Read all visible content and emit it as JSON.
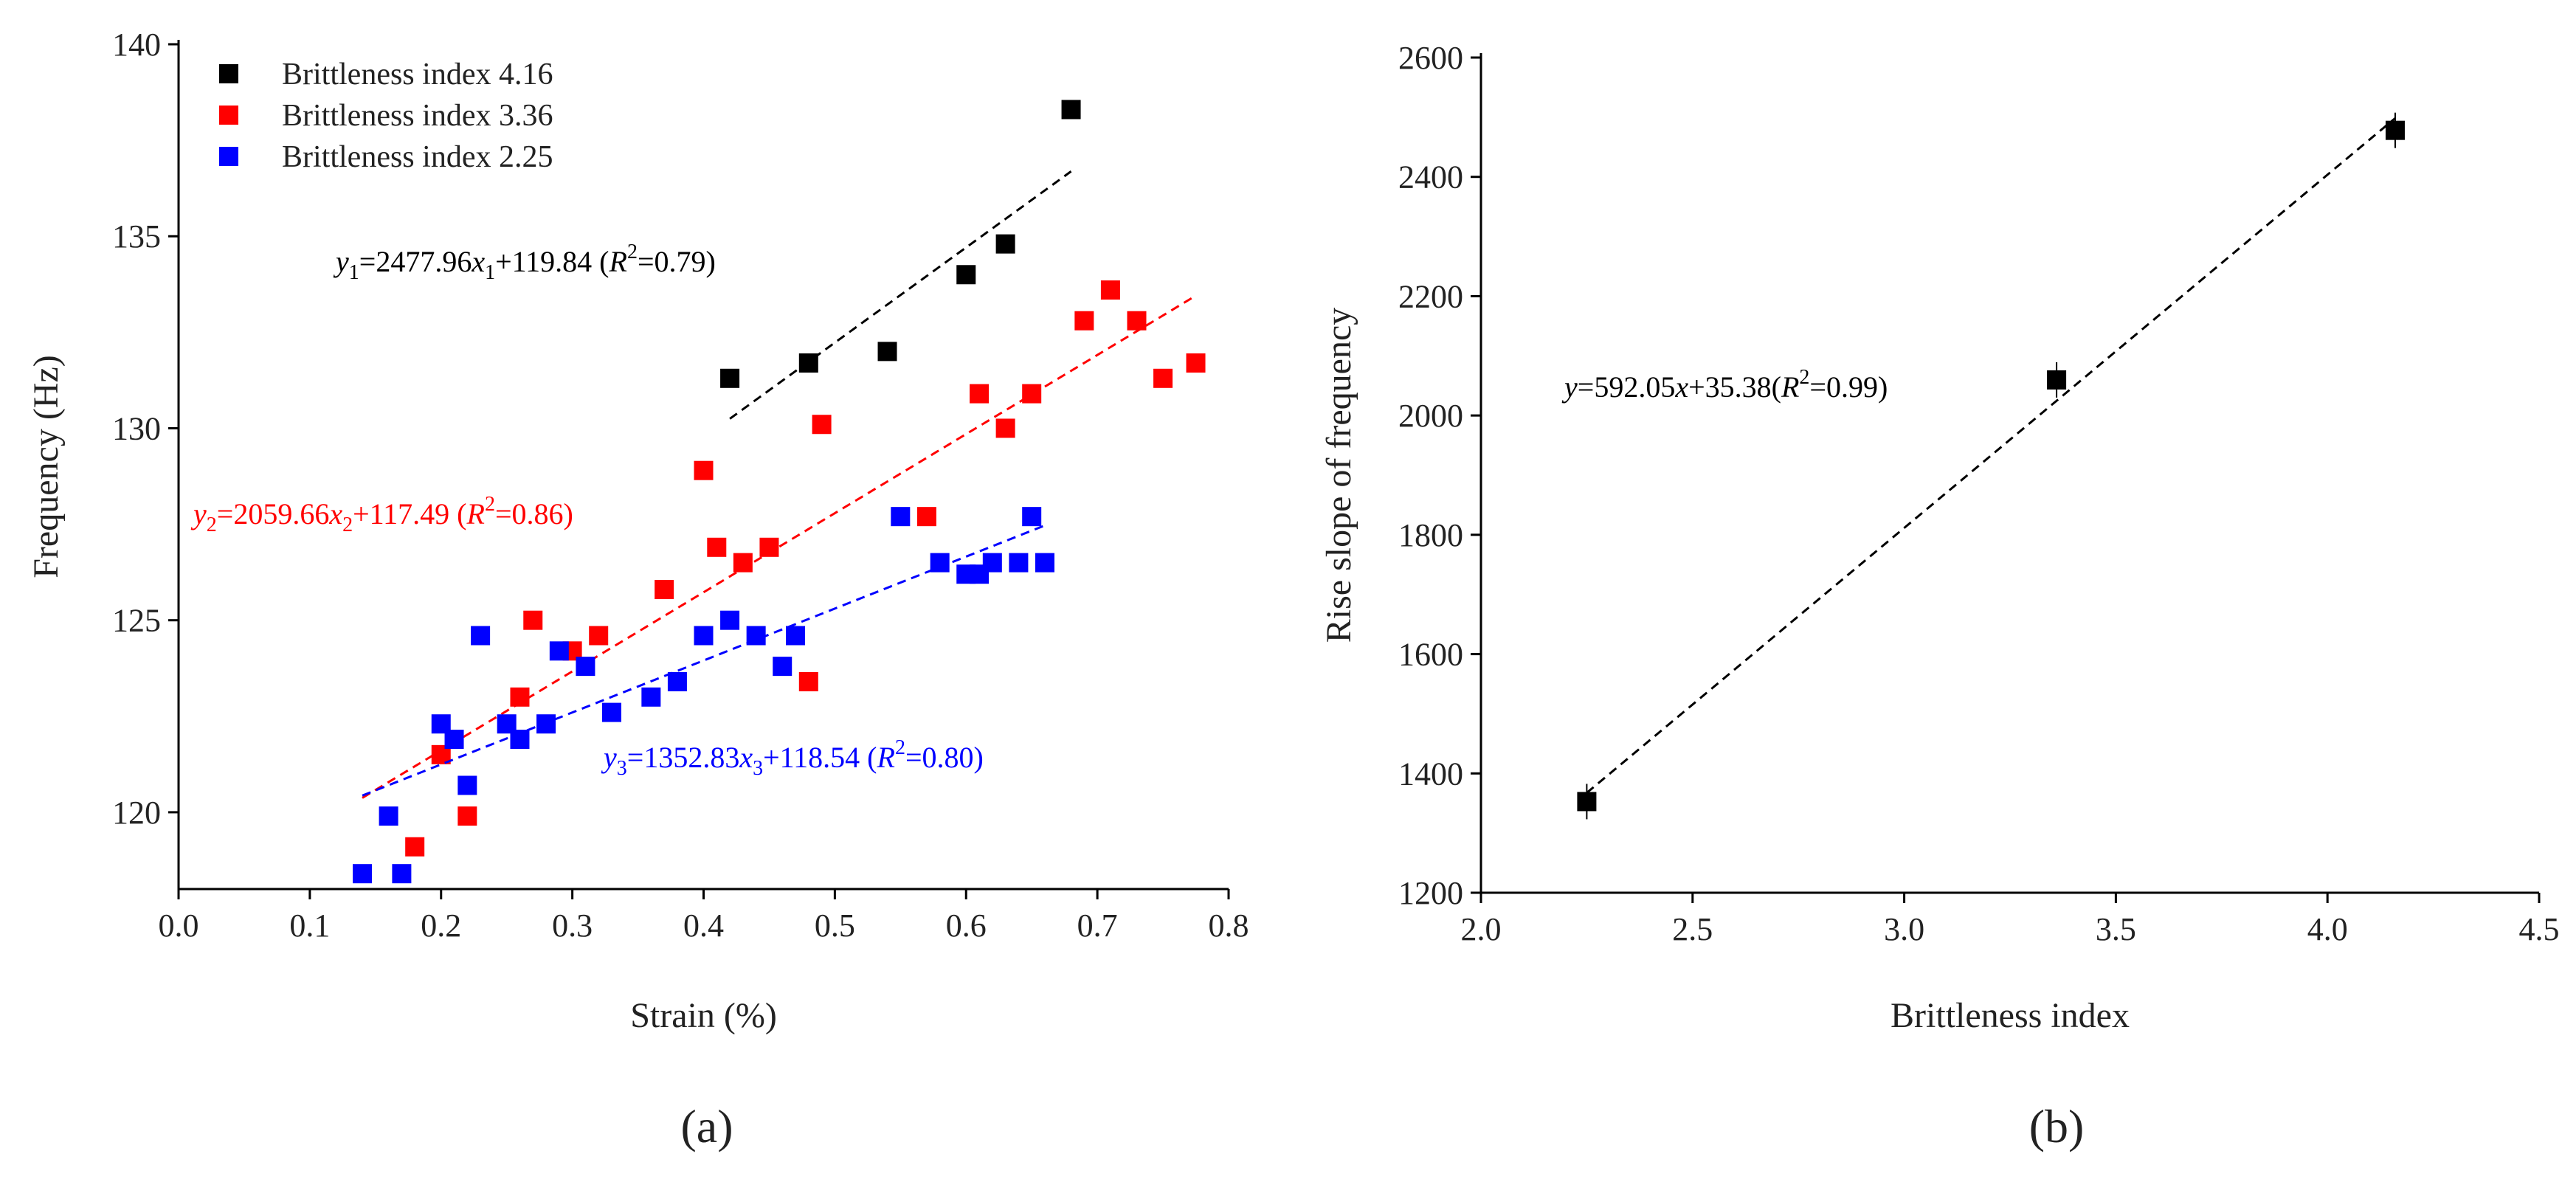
{
  "chart_data": [
    {
      "type": "scatter",
      "panel_label": "(a)",
      "xlabel": "Strain (%)",
      "ylabel": "Frequency (Hz)",
      "xlim": [
        0,
        0.8
      ],
      "ylim": [
        118,
        140
      ],
      "xticks": [
        "0.0",
        "0.1",
        "0.2",
        "0.3",
        "0.4",
        "0.5",
        "0.6",
        "0.7",
        "0.8"
      ],
      "yticks": [
        "120",
        "125",
        "130",
        "135",
        "140"
      ],
      "legend_position": "top-left",
      "series": [
        {
          "name": "Brittleness index 4.16",
          "color": "#000000",
          "points": [
            [
              0.42,
              131.3
            ],
            [
              0.48,
              131.7
            ],
            [
              0.54,
              132.0
            ],
            [
              0.6,
              134.0
            ],
            [
              0.63,
              134.8
            ],
            [
              0.68,
              138.3
            ]
          ],
          "fit": {
            "x_range": [
              0.42,
              0.68
            ],
            "slope": 2477.96,
            "intercept": 119.84,
            "prefix": "y",
            "sub": "1",
            "eq": "=2477.96",
            "xvar": "x",
            "tail": "+119.84 (",
            "r2": "=0.79)"
          }
        },
        {
          "name": "Brittleness index 3.36",
          "color": "#ff0000",
          "points": [
            [
              0.18,
              119.1
            ],
            [
              0.2,
              121.5
            ],
            [
              0.22,
              119.9
            ],
            [
              0.26,
              123.0
            ],
            [
              0.27,
              125.0
            ],
            [
              0.3,
              124.2
            ],
            [
              0.32,
              124.6
            ],
            [
              0.37,
              125.8
            ],
            [
              0.4,
              128.9
            ],
            [
              0.41,
              126.9
            ],
            [
              0.43,
              126.5
            ],
            [
              0.45,
              126.9
            ],
            [
              0.48,
              123.4
            ],
            [
              0.49,
              130.1
            ],
            [
              0.57,
              127.7
            ],
            [
              0.61,
              130.9
            ],
            [
              0.63,
              130.0
            ],
            [
              0.65,
              130.9
            ],
            [
              0.69,
              132.8
            ],
            [
              0.71,
              133.6
            ],
            [
              0.73,
              132.8
            ],
            [
              0.75,
              131.3
            ],
            [
              0.775,
              131.7
            ]
          ],
          "fit": {
            "x_range": [
              0.14,
              0.775
            ],
            "slope": 2059.66,
            "intercept": 117.49,
            "prefix": "y",
            "sub": "2",
            "eq": "=2059.66",
            "xvar": "x",
            "tail": "+117.49 (",
            "r2": "=0.86)"
          }
        },
        {
          "name": "Brittleness index 2.25",
          "color": "#0000ff",
          "points": [
            [
              0.14,
              118.4
            ],
            [
              0.16,
              119.9
            ],
            [
              0.17,
              118.4
            ],
            [
              0.2,
              122.3
            ],
            [
              0.21,
              121.9
            ],
            [
              0.22,
              120.7
            ],
            [
              0.23,
              124.6
            ],
            [
              0.25,
              122.3
            ],
            [
              0.26,
              121.9
            ],
            [
              0.28,
              122.3
            ],
            [
              0.29,
              124.2
            ],
            [
              0.31,
              123.8
            ],
            [
              0.33,
              122.6
            ],
            [
              0.36,
              123.0
            ],
            [
              0.38,
              123.4
            ],
            [
              0.4,
              124.6
            ],
            [
              0.42,
              125.0
            ],
            [
              0.44,
              124.6
            ],
            [
              0.46,
              123.8
            ],
            [
              0.47,
              124.6
            ],
            [
              0.55,
              127.7
            ],
            [
              0.58,
              126.5
            ],
            [
              0.6,
              126.2
            ],
            [
              0.61,
              126.2
            ],
            [
              0.62,
              126.5
            ],
            [
              0.64,
              126.5
            ],
            [
              0.65,
              127.7
            ],
            [
              0.66,
              126.5
            ]
          ],
          "fit": {
            "x_range": [
              0.14,
              0.66
            ],
            "slope": 1352.83,
            "intercept": 118.54,
            "prefix": "y",
            "sub": "3",
            "eq": "=1352.83",
            "xvar": "x",
            "tail": "+118.54 (",
            "r2": "=0.80)"
          }
        }
      ]
    },
    {
      "type": "scatter",
      "panel_label": "(b)",
      "xlabel": "Brittleness index",
      "ylabel": "Rise slope of frequency",
      "xlim": [
        2.0,
        4.5
      ],
      "ylim": [
        1200,
        2600
      ],
      "xticks": [
        "2.0",
        "2.5",
        "3.0",
        "3.5",
        "4.0",
        "4.5"
      ],
      "yticks": [
        "1200",
        "1400",
        "1600",
        "1800",
        "2000",
        "2200",
        "2400",
        "2600"
      ],
      "series": [
        {
          "name": "Rise slope",
          "color": "#000000",
          "points": [
            [
              2.25,
              1352.83
            ],
            [
              3.36,
              2059.66
            ],
            [
              4.16,
              2477.96
            ]
          ],
          "fit": {
            "x_range": [
              2.25,
              4.16
            ],
            "slope": 592.05,
            "intercept": 35.38,
            "prefix": "y",
            "eq": "=592.05",
            "xvar": "x",
            "tail": "+35.38(",
            "r2": "=0.99)"
          }
        }
      ]
    }
  ]
}
